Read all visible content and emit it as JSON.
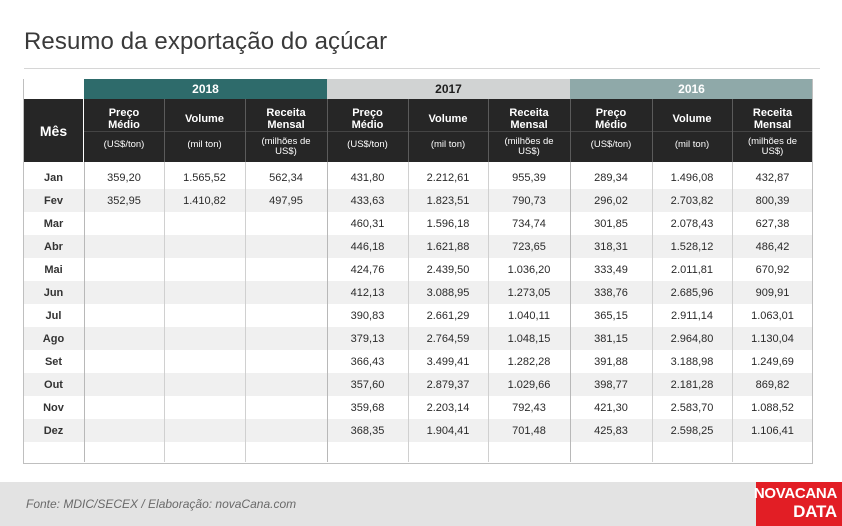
{
  "title": "Resumo da exportação do açúcar",
  "colors": {
    "y2018": "#2e6b6b",
    "y2017": "#d1d3d3",
    "y2016": "#8fa9a9",
    "header_bg": "#262626",
    "logo_bg": "#e21e25"
  },
  "header": {
    "month_label": "Mês",
    "years": [
      "2018",
      "2017",
      "2016"
    ],
    "columns": [
      {
        "l1": "Preço Médio",
        "l2": "(US$/ton)"
      },
      {
        "l1": "Volume",
        "l2": "(mil ton)"
      },
      {
        "l1": "Receita Mensal",
        "l2": "(milhões de US$)"
      }
    ]
  },
  "rows": [
    {
      "mes": "Jan",
      "v": [
        "359,20",
        "1.565,52",
        "562,34",
        "431,80",
        "2.212,61",
        "955,39",
        "289,34",
        "1.496,08",
        "432,87"
      ]
    },
    {
      "mes": "Fev",
      "v": [
        "352,95",
        "1.410,82",
        "497,95",
        "433,63",
        "1.823,51",
        "790,73",
        "296,02",
        "2.703,82",
        "800,39"
      ]
    },
    {
      "mes": "Mar",
      "v": [
        "",
        "",
        "",
        "460,31",
        "1.596,18",
        "734,74",
        "301,85",
        "2.078,43",
        "627,38"
      ]
    },
    {
      "mes": "Abr",
      "v": [
        "",
        "",
        "",
        "446,18",
        "1.621,88",
        "723,65",
        "318,31",
        "1.528,12",
        "486,42"
      ]
    },
    {
      "mes": "Mai",
      "v": [
        "",
        "",
        "",
        "424,76",
        "2.439,50",
        "1.036,20",
        "333,49",
        "2.011,81",
        "670,92"
      ]
    },
    {
      "mes": "Jun",
      "v": [
        "",
        "",
        "",
        "412,13",
        "3.088,95",
        "1.273,05",
        "338,76",
        "2.685,96",
        "909,91"
      ]
    },
    {
      "mes": "Jul",
      "v": [
        "",
        "",
        "",
        "390,83",
        "2.661,29",
        "1.040,11",
        "365,15",
        "2.911,14",
        "1.063,01"
      ]
    },
    {
      "mes": "Ago",
      "v": [
        "",
        "",
        "",
        "379,13",
        "2.764,59",
        "1.048,15",
        "381,15",
        "2.964,80",
        "1.130,04"
      ]
    },
    {
      "mes": "Set",
      "v": [
        "",
        "",
        "",
        "366,43",
        "3.499,41",
        "1.282,28",
        "391,88",
        "3.188,98",
        "1.249,69"
      ]
    },
    {
      "mes": "Out",
      "v": [
        "",
        "",
        "",
        "357,60",
        "2.879,37",
        "1.029,66",
        "398,77",
        "2.181,28",
        "869,82"
      ]
    },
    {
      "mes": "Nov",
      "v": [
        "",
        "",
        "",
        "359,68",
        "2.203,14",
        "792,43",
        "421,30",
        "2.583,70",
        "1.088,52"
      ]
    },
    {
      "mes": "Dez",
      "v": [
        "",
        "",
        "",
        "368,35",
        "1.904,41",
        "701,48",
        "425,83",
        "2.598,25",
        "1.106,41"
      ]
    }
  ],
  "footer": {
    "source": "Fonte: MDIC/SECEX / Elaboração: novaCana.com",
    "logo_line1": "NOVACANA",
    "logo_line2": "DATA"
  }
}
